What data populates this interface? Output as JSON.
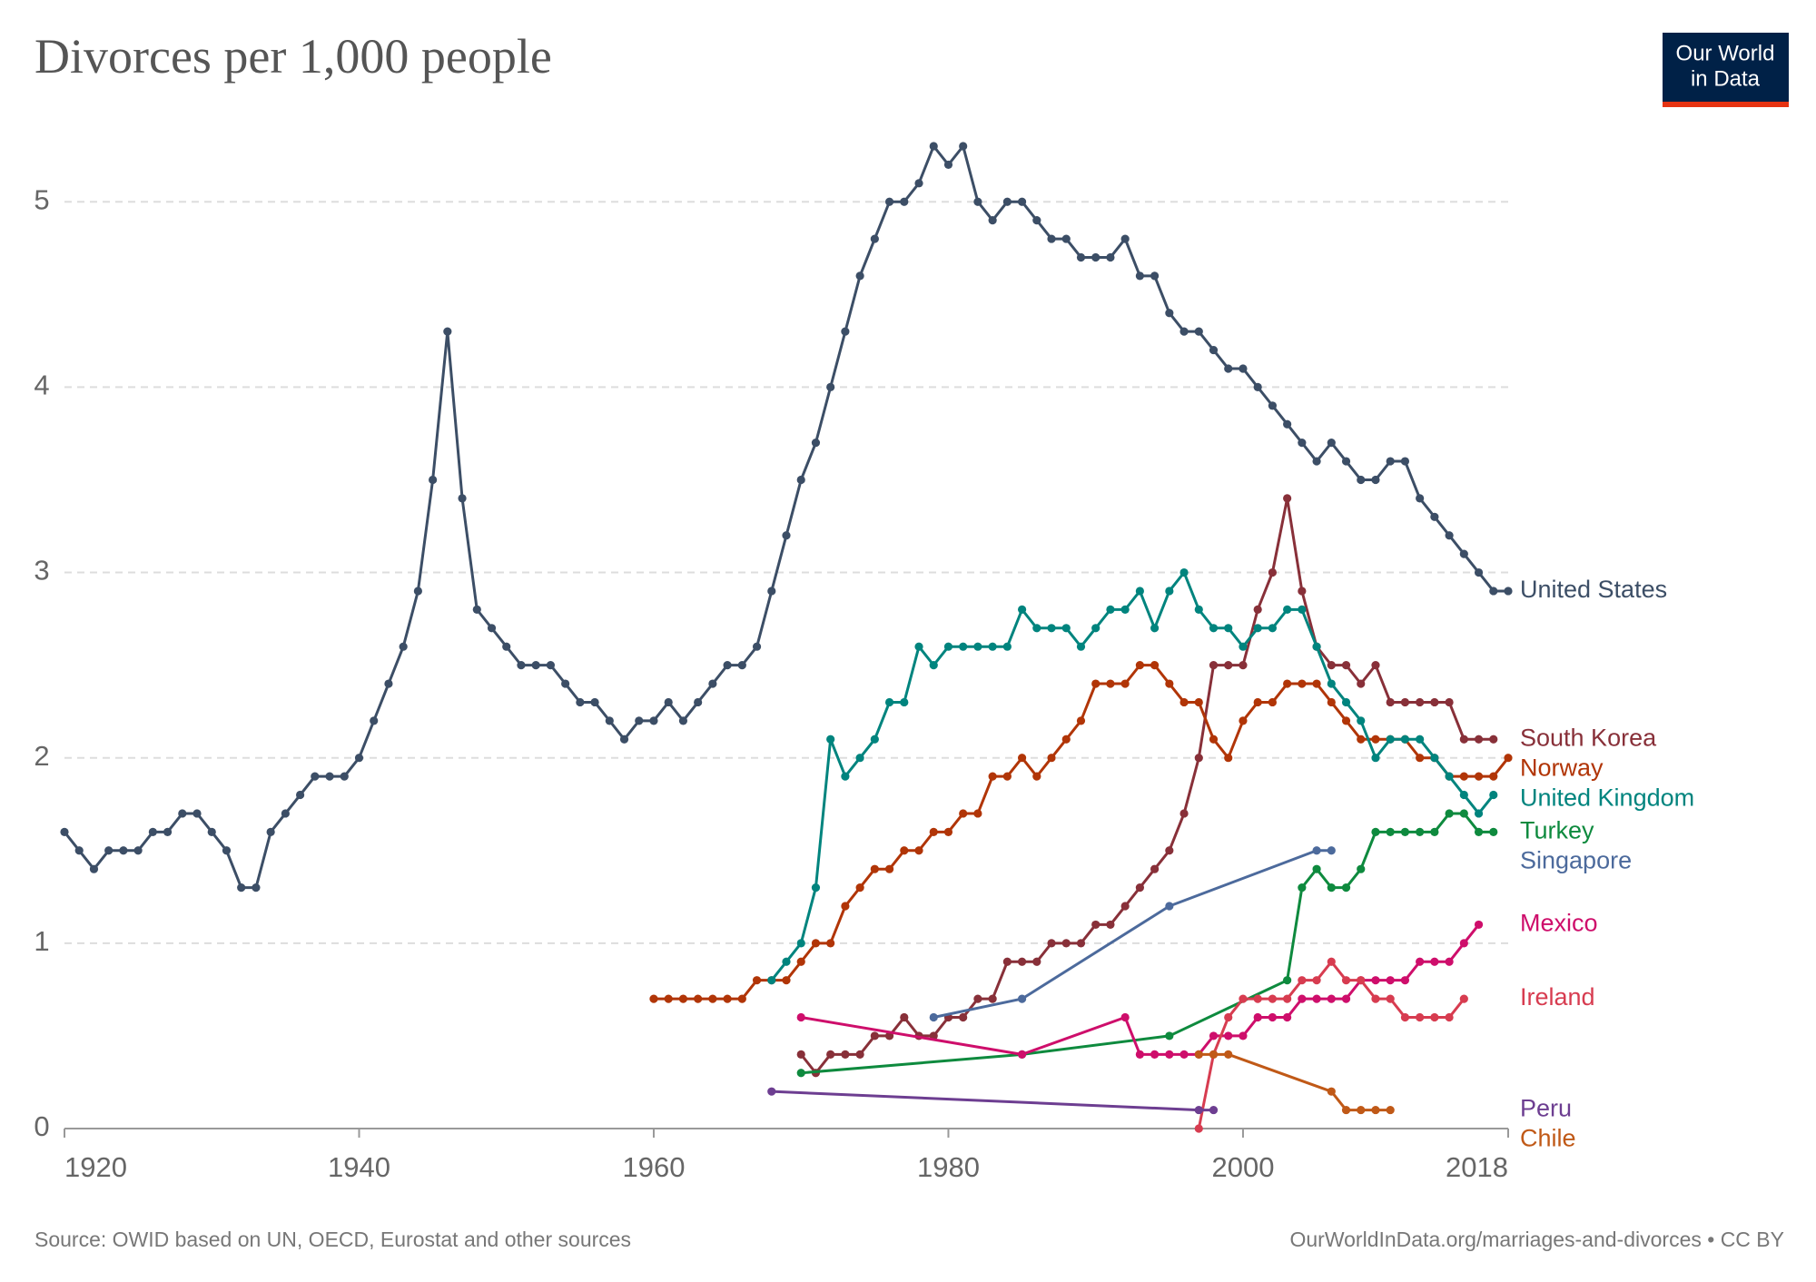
{
  "chart_data": {
    "type": "line",
    "title": "Divorces per 1,000 people",
    "logo": [
      "Our World",
      "in Data"
    ],
    "source": "Source: OWID based on UN, OECD, Eurostat and other sources",
    "credit": "OurWorldInData.org/marriages-and-divorces • CC BY",
    "xlim": [
      1920,
      2018
    ],
    "xticks": [
      1920,
      1940,
      1960,
      1980,
      2000,
      2018
    ],
    "ylim": [
      0,
      5.3
    ],
    "yticks": [
      0,
      1,
      2,
      3,
      4,
      5
    ],
    "grid": true,
    "series": [
      {
        "name": "United States",
        "color": "#3C4E66",
        "x": [
          1920,
          1921,
          1922,
          1923,
          1924,
          1925,
          1926,
          1927,
          1928,
          1929,
          1930,
          1931,
          1932,
          1933,
          1934,
          1935,
          1936,
          1937,
          1938,
          1939,
          1940,
          1941,
          1942,
          1943,
          1944,
          1945,
          1946,
          1947,
          1948,
          1949,
          1950,
          1951,
          1952,
          1953,
          1954,
          1955,
          1956,
          1957,
          1958,
          1959,
          1960,
          1961,
          1962,
          1963,
          1964,
          1965,
          1966,
          1967,
          1968,
          1969,
          1970,
          1971,
          1972,
          1973,
          1974,
          1975,
          1976,
          1977,
          1978,
          1979,
          1980,
          1981,
          1982,
          1983,
          1984,
          1985,
          1986,
          1987,
          1988,
          1989,
          1990,
          1991,
          1992,
          1993,
          1994,
          1995,
          1996,
          1997,
          1998,
          1999,
          2000,
          2001,
          2002,
          2003,
          2004,
          2005,
          2006,
          2007,
          2008,
          2009,
          2010,
          2011,
          2012,
          2013,
          2014,
          2015,
          2016,
          2017,
          2018
        ],
        "values": [
          1.6,
          1.5,
          1.4,
          1.5,
          1.5,
          1.5,
          1.6,
          1.6,
          1.7,
          1.7,
          1.6,
          1.5,
          1.3,
          1.3,
          1.6,
          1.7,
          1.8,
          1.9,
          1.9,
          1.9,
          2.0,
          2.2,
          2.4,
          2.6,
          2.9,
          3.5,
          4.3,
          3.4,
          2.8,
          2.7,
          2.6,
          2.5,
          2.5,
          2.5,
          2.4,
          2.3,
          2.3,
          2.2,
          2.1,
          2.2,
          2.2,
          2.3,
          2.2,
          2.3,
          2.4,
          2.5,
          2.5,
          2.6,
          2.9,
          3.2,
          3.5,
          3.7,
          4.0,
          4.3,
          4.6,
          4.8,
          5.0,
          5.0,
          5.1,
          5.3,
          5.2,
          5.3,
          5.0,
          4.9,
          5.0,
          5.0,
          4.9,
          4.8,
          4.8,
          4.7,
          4.7,
          4.7,
          4.8,
          4.6,
          4.6,
          4.4,
          4.3,
          4.3,
          4.2,
          4.1,
          4.1,
          4.0,
          3.9,
          3.8,
          3.7,
          3.6,
          3.7,
          3.6,
          3.5,
          3.5,
          3.6,
          3.6,
          3.4,
          3.3,
          3.2,
          3.1,
          3.0,
          2.9,
          2.9
        ]
      },
      {
        "name": "South Korea",
        "color": "#883039",
        "x": [
          1970,
          1971,
          1972,
          1973,
          1974,
          1975,
          1976,
          1977,
          1978,
          1979,
          1980,
          1981,
          1982,
          1983,
          1984,
          1985,
          1986,
          1987,
          1988,
          1989,
          1990,
          1991,
          1992,
          1993,
          1994,
          1995,
          1996,
          1997,
          1998,
          1999,
          2000,
          2001,
          2002,
          2003,
          2004,
          2005,
          2006,
          2007,
          2008,
          2009,
          2010,
          2011,
          2012,
          2013,
          2014,
          2015,
          2016,
          2017
        ],
        "values": [
          0.4,
          0.3,
          0.4,
          0.4,
          0.4,
          0.5,
          0.5,
          0.6,
          0.5,
          0.5,
          0.6,
          0.6,
          0.7,
          0.7,
          0.9,
          0.9,
          0.9,
          1.0,
          1.0,
          1.0,
          1.1,
          1.1,
          1.2,
          1.3,
          1.4,
          1.5,
          1.7,
          2.0,
          2.5,
          2.5,
          2.5,
          2.8,
          3.0,
          3.4,
          2.9,
          2.6,
          2.5,
          2.5,
          2.4,
          2.5,
          2.3,
          2.3,
          2.3,
          2.3,
          2.3,
          2.1,
          2.1,
          2.1
        ]
      },
      {
        "name": "Norway",
        "color": "#B13507",
        "x": [
          1960,
          1961,
          1962,
          1963,
          1964,
          1965,
          1966,
          1967,
          1968,
          1969,
          1970,
          1971,
          1972,
          1973,
          1974,
          1975,
          1976,
          1977,
          1978,
          1979,
          1980,
          1981,
          1982,
          1983,
          1984,
          1985,
          1986,
          1987,
          1988,
          1989,
          1990,
          1991,
          1992,
          1993,
          1994,
          1995,
          1996,
          1997,
          1998,
          1999,
          2000,
          2001,
          2002,
          2003,
          2004,
          2005,
          2006,
          2007,
          2008,
          2009,
          2010,
          2011,
          2012,
          2013,
          2014,
          2015,
          2016,
          2017,
          2018
        ],
        "values": [
          0.7,
          0.7,
          0.7,
          0.7,
          0.7,
          0.7,
          0.7,
          0.8,
          0.8,
          0.8,
          0.9,
          1.0,
          1.0,
          1.2,
          1.3,
          1.4,
          1.4,
          1.5,
          1.5,
          1.6,
          1.6,
          1.7,
          1.7,
          1.9,
          1.9,
          2.0,
          1.9,
          2.0,
          2.1,
          2.2,
          2.4,
          2.4,
          2.4,
          2.5,
          2.5,
          2.4,
          2.3,
          2.3,
          2.1,
          2.0,
          2.2,
          2.3,
          2.3,
          2.4,
          2.4,
          2.4,
          2.3,
          2.2,
          2.1,
          2.1,
          2.1,
          2.1,
          2.0,
          2.0,
          1.9,
          1.9,
          1.9,
          1.9,
          2.0
        ]
      },
      {
        "name": "United Kingdom",
        "color": "#00847E",
        "x": [
          1968,
          1969,
          1970,
          1971,
          1972,
          1973,
          1974,
          1975,
          1976,
          1977,
          1978,
          1979,
          1980,
          1981,
          1982,
          1983,
          1984,
          1985,
          1986,
          1987,
          1988,
          1989,
          1990,
          1991,
          1992,
          1993,
          1994,
          1995,
          1996,
          1997,
          1998,
          1999,
          2000,
          2001,
          2002,
          2003,
          2004,
          2005,
          2006,
          2007,
          2008,
          2009,
          2010,
          2011,
          2012,
          2013,
          2014,
          2015,
          2016,
          2017
        ],
        "values": [
          0.8,
          0.9,
          1.0,
          1.3,
          2.1,
          1.9,
          2.0,
          2.1,
          2.3,
          2.3,
          2.6,
          2.5,
          2.6,
          2.6,
          2.6,
          2.6,
          2.6,
          2.8,
          2.7,
          2.7,
          2.7,
          2.6,
          2.7,
          2.8,
          2.8,
          2.9,
          2.7,
          2.9,
          3.0,
          2.8,
          2.7,
          2.7,
          2.6,
          2.7,
          2.7,
          2.8,
          2.8,
          2.6,
          2.4,
          2.3,
          2.2,
          2.0,
          2.1,
          2.1,
          2.1,
          2.0,
          1.9,
          1.8,
          1.7,
          1.8
        ]
      },
      {
        "name": "Turkey",
        "color": "#0E8A3E",
        "x": [
          1970,
          1985,
          1995,
          2003,
          2004,
          2005,
          2006,
          2007,
          2008,
          2009,
          2010,
          2011,
          2012,
          2013,
          2014,
          2015,
          2016,
          2017
        ],
        "values": [
          0.3,
          0.4,
          0.5,
          0.8,
          1.3,
          1.4,
          1.3,
          1.3,
          1.4,
          1.6,
          1.6,
          1.6,
          1.6,
          1.6,
          1.7,
          1.7,
          1.6,
          1.6
        ]
      },
      {
        "name": "Singapore",
        "color": "#4C6A9C",
        "x": [
          1979,
          1985,
          1995,
          2005,
          2006
        ],
        "values": [
          0.6,
          0.7,
          1.2,
          1.5,
          1.5
        ]
      },
      {
        "name": "Mexico",
        "color": "#CE0E6B",
        "x": [
          1970,
          1985,
          1992,
          1993,
          1994,
          1995,
          1996,
          1997,
          1998,
          1999,
          2000,
          2001,
          2002,
          2003,
          2004,
          2005,
          2006,
          2007,
          2008,
          2009,
          2010,
          2011,
          2012,
          2013,
          2014,
          2015,
          2016
        ],
        "values": [
          0.6,
          0.4,
          0.6,
          0.4,
          0.4,
          0.4,
          0.4,
          0.4,
          0.5,
          0.5,
          0.5,
          0.6,
          0.6,
          0.6,
          0.7,
          0.7,
          0.7,
          0.7,
          0.8,
          0.8,
          0.8,
          0.8,
          0.9,
          0.9,
          0.9,
          1.0,
          1.1
        ]
      },
      {
        "name": "Ireland",
        "color": "#D73C50",
        "x": [
          1997,
          1998,
          1999,
          2000,
          2001,
          2002,
          2003,
          2004,
          2005,
          2006,
          2007,
          2008,
          2009,
          2010,
          2011,
          2012,
          2013,
          2014,
          2015
        ],
        "values": [
          0.0,
          0.4,
          0.6,
          0.7,
          0.7,
          0.7,
          0.7,
          0.8,
          0.8,
          0.9,
          0.8,
          0.8,
          0.7,
          0.7,
          0.6,
          0.6,
          0.6,
          0.6,
          0.7
        ]
      },
      {
        "name": "Peru",
        "color": "#6D3E91",
        "x": [
          1968,
          1997,
          1998
        ],
        "values": [
          0.2,
          0.1,
          0.1
        ]
      },
      {
        "name": "Chile",
        "color": "#C05917",
        "x": [
          1997,
          1998,
          1999,
          2006,
          2007,
          2008,
          2009,
          2010
        ],
        "values": [
          0.4,
          0.4,
          0.4,
          0.2,
          0.1,
          0.1,
          0.1,
          0.1
        ]
      }
    ]
  }
}
